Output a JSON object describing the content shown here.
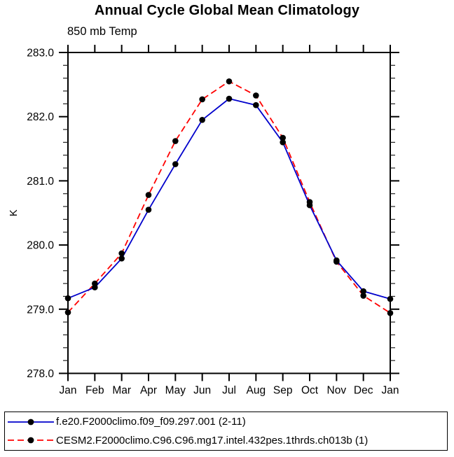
{
  "chart_data": {
    "type": "line",
    "title": "Annual Cycle Global Mean Climatology",
    "subtitle": "850 mb Temp",
    "xlabel": "",
    "ylabel": "K",
    "x_tick_labels": [
      "Jan",
      "Feb",
      "Mar",
      "Apr",
      "May",
      "Jun",
      "Jul",
      "Aug",
      "Sep",
      "Oct",
      "Nov",
      "Dec",
      "Jan"
    ],
    "ylim": [
      278.0,
      283.0
    ],
    "y_tick_labels": [
      "278.0",
      "279.0",
      "280.0",
      "281.0",
      "282.0",
      "283.0"
    ],
    "y_major_step": 1.0,
    "y_minor_step": 0.2,
    "grid": false,
    "legend_position": "bottom-outside-box",
    "marker": "filled-black-circle",
    "marker_color": "#000000",
    "axis_color": "#000000",
    "series": [
      {
        "name": "f.e20.F2000climo.f09_f09.297.001 (2-11)",
        "color": "#0000cc",
        "style": "solid",
        "values": [
          279.17,
          279.34,
          279.79,
          280.55,
          281.26,
          281.95,
          282.28,
          282.18,
          281.6,
          280.62,
          279.76,
          279.28,
          279.16
        ]
      },
      {
        "name": "CESM2.F2000climo.C96.C96.mg17.intel.432pes.1thrds.ch013b (1)",
        "color": "#ff0000",
        "style": "dashed",
        "values": [
          278.95,
          279.4,
          279.87,
          280.78,
          281.62,
          282.27,
          282.55,
          282.33,
          281.67,
          280.67,
          279.74,
          279.21,
          278.94
        ]
      }
    ]
  }
}
